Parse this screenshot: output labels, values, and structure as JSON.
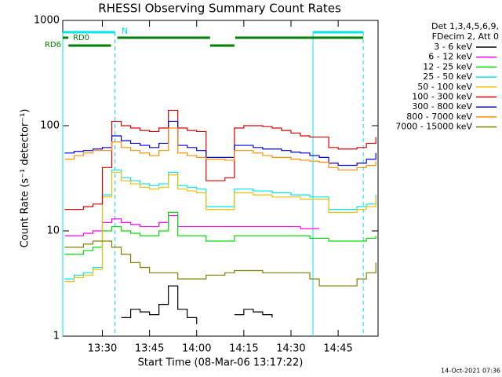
{
  "chart_data": {
    "type": "line",
    "title": "RHESSI Observing Summary Count Rates",
    "x_label": "Start Time (08-Mar-06 13:17:22)",
    "y_label": "Count Rate (s⁻¹ detector⁻¹)",
    "legend_header": [
      "Det 1,3,4,5,6,9,",
      "FDecim 2, Att 0"
    ],
    "footer": "14-Oct-2021 07:36",
    "log_y": true,
    "xlim": [
      797.4,
      897.7
    ],
    "xticks": [
      {
        "value": 810,
        "label": "13:30"
      },
      {
        "value": 825,
        "label": "13:45"
      },
      {
        "value": 840,
        "label": "14:00"
      },
      {
        "value": 855,
        "label": "14:15"
      },
      {
        "value": 870,
        "label": "14:30"
      },
      {
        "value": 885,
        "label": "14:45"
      }
    ],
    "ylim": [
      1,
      1000
    ],
    "yticks": [
      1,
      10,
      100,
      1000
    ],
    "flags": [
      {
        "label": "N",
        "color": "#00e5ee",
        "spans": [
          [
            797.4,
            814
          ],
          [
            877,
            893
          ]
        ]
      },
      {
        "label": "RD0",
        "color": "#008000",
        "spans": [
          [
            797.4,
            799.2
          ],
          [
            814.75,
            844.25
          ],
          [
            852.25,
            893
          ]
        ]
      },
      {
        "label": "RD6",
        "color": "#008000",
        "spans": [
          [
            799.2,
            812.75
          ],
          [
            844.25,
            852
          ]
        ]
      }
    ],
    "x": [
      798,
      801,
      804,
      807,
      810,
      813,
      816,
      819,
      822,
      825,
      828,
      831,
      834,
      837,
      840,
      843,
      846,
      849,
      852,
      855,
      858,
      861,
      864,
      867,
      870,
      873,
      876,
      879,
      882,
      885,
      888,
      891,
      894,
      897
    ],
    "series": [
      {
        "name": "3 - 6 keV",
        "color": "#000000",
        "values": [
          null,
          null,
          null,
          null,
          null,
          null,
          1.5,
          1.8,
          1.7,
          1.6,
          2,
          3,
          1.8,
          1.5,
          1.3,
          null,
          null,
          null,
          1.6,
          1.8,
          1.7,
          1.6,
          1.5,
          null,
          null,
          null,
          null,
          null,
          null,
          null,
          null,
          null,
          null,
          null
        ]
      },
      {
        "name": "6 - 12 keV",
        "color": "#ff00ff",
        "values": [
          9,
          9,
          9.5,
          10,
          12,
          13,
          12,
          11.5,
          11,
          11,
          12,
          14,
          11,
          11,
          11,
          11,
          11,
          11,
          11,
          11,
          11,
          11,
          11,
          11,
          11,
          10.5,
          10.5,
          10.5,
          null,
          null,
          null,
          null,
          null,
          null
        ]
      },
      {
        "name": "12 - 25 keV",
        "color": "#00e000",
        "values": [
          6,
          6,
          6.5,
          7,
          10,
          11,
          10,
          9.5,
          9,
          9,
          10,
          15,
          9,
          9,
          9,
          8,
          8,
          8,
          9,
          9,
          9,
          9,
          9,
          9,
          9,
          9,
          8.5,
          8.5,
          8,
          8,
          8,
          8,
          8.5,
          9
        ]
      },
      {
        "name": "25 - 50 keV",
        "color": "#00e5ee",
        "values": [
          3.5,
          3.8,
          4,
          4.5,
          22,
          38,
          32,
          30,
          28,
          27,
          28,
          36,
          27,
          26,
          25,
          17,
          17,
          17,
          25,
          25,
          24,
          24,
          23,
          23,
          22,
          22,
          21,
          21,
          16,
          16,
          16,
          17,
          18,
          22
        ]
      },
      {
        "name": "50 - 100 keV",
        "color": "#f0c000",
        "values": [
          3.3,
          3.6,
          3.8,
          4.3,
          21,
          36,
          30,
          28,
          26,
          25,
          26,
          34,
          25,
          24,
          23,
          16,
          16,
          16,
          23,
          23,
          22,
          22,
          21,
          21,
          21,
          20,
          20,
          20,
          15,
          15,
          15,
          16,
          17,
          21
        ]
      },
      {
        "name": "100 - 300 keV",
        "color": "#e00000",
        "values": [
          16,
          16,
          17,
          18,
          40,
          110,
          100,
          95,
          90,
          88,
          95,
          140,
          95,
          90,
          88,
          30,
          30,
          32,
          95,
          100,
          100,
          98,
          95,
          90,
          85,
          80,
          78,
          78,
          62,
          60,
          60,
          62,
          68,
          78
        ]
      },
      {
        "name": "300 - 800 keV",
        "color": "#0000e0",
        "values": [
          55,
          57,
          58,
          60,
          62,
          80,
          72,
          68,
          65,
          62,
          68,
          110,
          65,
          62,
          58,
          50,
          50,
          50,
          65,
          65,
          62,
          60,
          60,
          58,
          56,
          55,
          52,
          50,
          44,
          42,
          42,
          44,
          48,
          55
        ]
      },
      {
        "name": "800 - 7000 keV",
        "color": "#ff8c00",
        "values": [
          48,
          52,
          55,
          58,
          58,
          70,
          62,
          58,
          55,
          52,
          58,
          95,
          55,
          52,
          50,
          48,
          48,
          47,
          58,
          58,
          55,
          52,
          50,
          50,
          48,
          47,
          46,
          45,
          40,
          38,
          38,
          40,
          42,
          46
        ]
      },
      {
        "name": "7000 - 15000 keV",
        "color": "#808000",
        "values": [
          7,
          7,
          7.5,
          8,
          8,
          7,
          6,
          5,
          4.5,
          4,
          4,
          4,
          3.5,
          3.5,
          3.5,
          3.8,
          3.8,
          4,
          4.2,
          4.2,
          4.2,
          4,
          4,
          4,
          4,
          4,
          3.5,
          3,
          3,
          3,
          3,
          3.5,
          4,
          5
        ]
      }
    ]
  }
}
